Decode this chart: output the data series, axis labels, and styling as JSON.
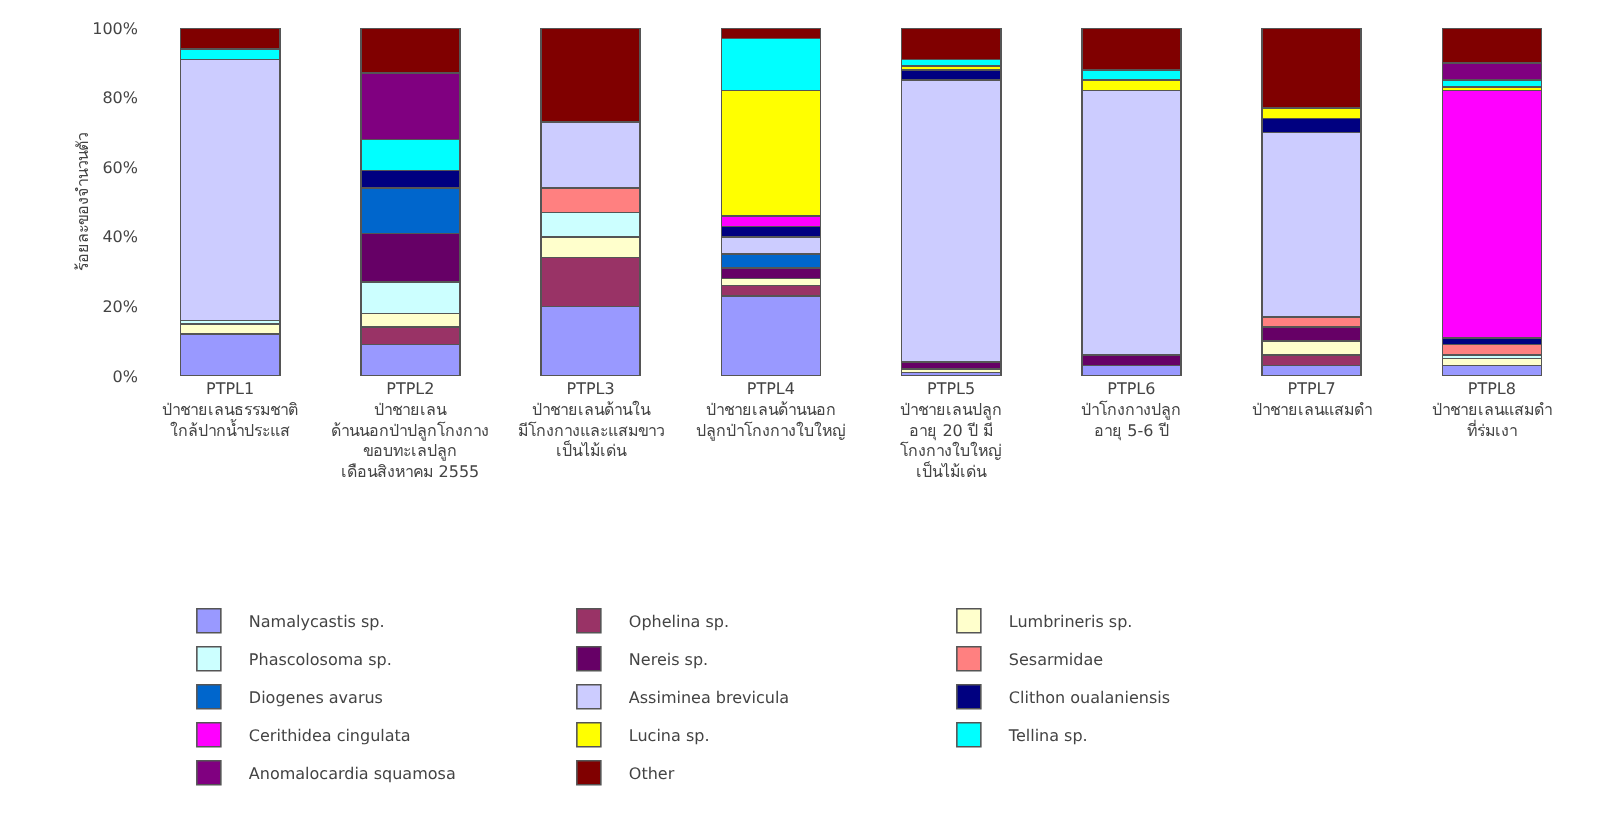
{
  "chart_data": {
    "type": "bar",
    "stacked": true,
    "ylabel": "ร้อยละของจำนวนตัว",
    "categories": [
      "PTPL1\nป่าชายเลนธรรมชาติ\nใกล้ปากน้ำประแส",
      "PTPL2\nป่าชายเลน\nด้านนอกป่าปลูกโกงกาง\nขอบทะเลปลูก\nเดือนสิงหาคม 2555",
      "PTPL3\nป่าชายเลนด้านใน\nมีโกงกางและแสมขาว\nเป็นไม้เด่น",
      "PTPL4\nป่าชายเลนด้านนอก\nปลูกป่าโกงกางใบใหญ่",
      "PTPL5\nป่าชายเลนปลูก\nอายุ 20 ปี มี\nโกงกางใบใหญ่\nเป็นไม้เด่น",
      "PTPL6\nป่าโกงกางปลูก\nอายุ 5-6 ปี",
      "PTPL7\nป่าชายเลนแสมดำ",
      "PTPL8\nป่าชายเลนแสมดำ\nที่ร่มเงา"
    ],
    "series": [
      {
        "name": "Namalycastis sp.",
        "color": "#9999ff",
        "values": [
          12,
          9,
          20,
          23,
          1,
          3,
          3,
          3
        ]
      },
      {
        "name": "Ophelina sp.",
        "color": "#993366",
        "values": [
          null,
          5,
          14,
          3,
          null,
          null,
          3,
          null
        ]
      },
      {
        "name": "Lumbrineris sp.",
        "color": "#ffffcc",
        "values": [
          3,
          4,
          6,
          2,
          1,
          null,
          4,
          2
        ]
      },
      {
        "name": "Phascolosoma sp.",
        "color": "#ccffff",
        "values": [
          1,
          9,
          7,
          null,
          null,
          null,
          null,
          1
        ]
      },
      {
        "name": "Nereis sp.",
        "color": "#660066",
        "values": [
          null,
          14,
          null,
          3,
          2,
          3,
          4,
          null
        ]
      },
      {
        "name": "Sesarmidae",
        "color": "#ff8080",
        "values": [
          null,
          null,
          7,
          null,
          null,
          null,
          3,
          3
        ]
      },
      {
        "name": "Diogenes avarus",
        "color": "#0066cc",
        "values": [
          null,
          13,
          null,
          4,
          null,
          null,
          null,
          null
        ]
      },
      {
        "name": "Assiminea brevicula",
        "color": "#ccccff",
        "values": [
          75,
          null,
          19,
          5,
          81,
          76,
          53,
          null
        ]
      },
      {
        "name": "Clithon oualaniensis",
        "color": "#000080",
        "values": [
          null,
          5,
          null,
          3,
          3,
          null,
          4,
          2
        ]
      },
      {
        "name": "Cerithidea cingulata",
        "color": "#ff00ff",
        "values": [
          null,
          null,
          null,
          3,
          null,
          null,
          null,
          71
        ]
      },
      {
        "name": "Lucina sp.",
        "color": "#ffff00",
        "values": [
          null,
          null,
          null,
          36,
          1,
          3,
          3,
          1
        ]
      },
      {
        "name": "Tellina sp.",
        "color": "#00ffff",
        "values": [
          3,
          9,
          null,
          15,
          2,
          3,
          null,
          2
        ]
      },
      {
        "name": "Anomalocardia squamosa",
        "color": "#800080",
        "values": [
          null,
          19,
          null,
          null,
          null,
          null,
          null,
          5
        ]
      },
      {
        "name": "Other",
        "color": "#800000",
        "values": [
          6,
          13,
          27,
          3,
          9,
          12,
          23,
          10
        ]
      }
    ],
    "ylim": [
      0,
      100
    ],
    "yticks": [
      {
        "value": 0,
        "label": "0%"
      },
      {
        "value": 20,
        "label": "20%"
      },
      {
        "value": 40,
        "label": "40%"
      },
      {
        "value": 60,
        "label": "60%"
      },
      {
        "value": 80,
        "label": "80%"
      },
      {
        "value": 100,
        "label": "100%"
      }
    ],
    "grid": false,
    "legend": "bottom"
  }
}
